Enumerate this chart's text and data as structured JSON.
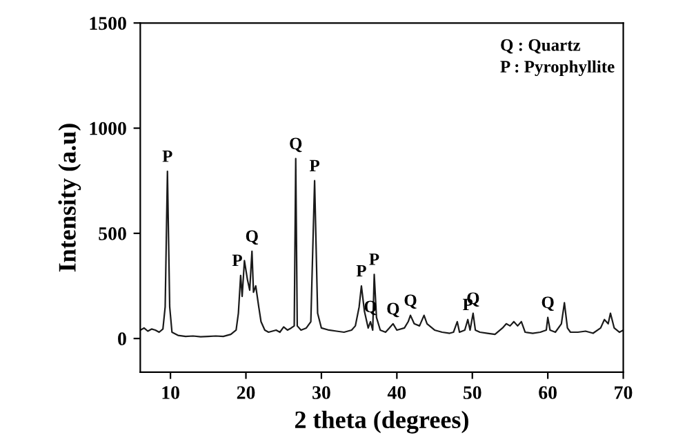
{
  "chart_data": {
    "type": "line",
    "xlabel": "2 theta (degrees)",
    "ylabel": "Intensity (a.u)",
    "xlim": [
      6,
      70
    ],
    "xticks": [
      10,
      20,
      30,
      40,
      50,
      60,
      70
    ],
    "ylim": [
      -160,
      1500
    ],
    "yticks": [
      0,
      500,
      1000,
      1500
    ],
    "grid": false,
    "legend": false,
    "marker": "none",
    "line_style": "solid",
    "series": [
      {
        "color": "#1a1a1a",
        "x": [
          6,
          6.5,
          7,
          7.5,
          8,
          8.5,
          9,
          9.3,
          9.6,
          9.9,
          10.2,
          11,
          12,
          13,
          14,
          15,
          16,
          17,
          18,
          18.7,
          19.0,
          19.3,
          19.5,
          19.8,
          20.2,
          20.5,
          20.8,
          21.0,
          21.3,
          21.7,
          22,
          22.5,
          23,
          24,
          24.5,
          25,
          25.5,
          26,
          26.4,
          26.6,
          26.8,
          27.3,
          28,
          28.6,
          29.1,
          29.5,
          30,
          31,
          32,
          33,
          34,
          34.5,
          35,
          35.3,
          35.7,
          36.2,
          36.5,
          36.8,
          37,
          37.3,
          37.8,
          38.5,
          39,
          39.5,
          40,
          41,
          41.5,
          41.8,
          42.3,
          43,
          43.6,
          44,
          45,
          46,
          47,
          47.5,
          48,
          48.3,
          49,
          49.4,
          49.7,
          50.1,
          50.4,
          51,
          52,
          53,
          54,
          54.5,
          55,
          55.5,
          56,
          56.5,
          57,
          58,
          59,
          59.8,
          60,
          60.3,
          61,
          61.8,
          62.2,
          62.6,
          63,
          64,
          65,
          66,
          67,
          67.5,
          68,
          68.3,
          68.8,
          69.5,
          70
        ],
        "values": [
          40,
          50,
          35,
          45,
          40,
          30,
          45,
          150,
          795,
          150,
          30,
          15,
          10,
          12,
          8,
          10,
          12,
          10,
          20,
          40,
          120,
          300,
          200,
          370,
          280,
          230,
          415,
          220,
          250,
          150,
          80,
          40,
          30,
          40,
          30,
          55,
          40,
          50,
          60,
          855,
          60,
          40,
          50,
          80,
          750,
          120,
          50,
          40,
          35,
          30,
          40,
          60,
          150,
          250,
          130,
          50,
          80,
          40,
          305,
          100,
          40,
          30,
          50,
          70,
          40,
          50,
          80,
          110,
          70,
          60,
          110,
          70,
          40,
          30,
          25,
          30,
          80,
          30,
          40,
          90,
          40,
          120,
          40,
          30,
          25,
          20,
          50,
          70,
          60,
          80,
          60,
          80,
          30,
          25,
          30,
          40,
          100,
          40,
          30,
          70,
          170,
          50,
          30,
          30,
          35,
          25,
          50,
          90,
          70,
          120,
          50,
          30,
          40
        ]
      }
    ],
    "annotations": [
      {
        "text": "P",
        "x": 9.6,
        "y": 795
      },
      {
        "text": "P",
        "x": 19.3,
        "y": 300
      },
      {
        "text": "Q",
        "x": 20.8,
        "y": 415
      },
      {
        "text": "Q",
        "x": 26.6,
        "y": 855
      },
      {
        "text": "P",
        "x": 29.1,
        "y": 750
      },
      {
        "text": "P",
        "x": 35.3,
        "y": 250
      },
      {
        "text": "Q",
        "x": 36.5,
        "y": 80
      },
      {
        "text": "P",
        "x": 37,
        "y": 305
      },
      {
        "text": "Q",
        "x": 39.5,
        "y": 70
      },
      {
        "text": "Q",
        "x": 41.8,
        "y": 110
      },
      {
        "text": "P",
        "x": 49.4,
        "y": 90
      },
      {
        "text": "Q",
        "x": 50.1,
        "y": 120
      },
      {
        "text": "Q",
        "x": 60,
        "y": 100
      },
      "Q : Quartz",
      "P : Pyrophyllite"
    ]
  }
}
